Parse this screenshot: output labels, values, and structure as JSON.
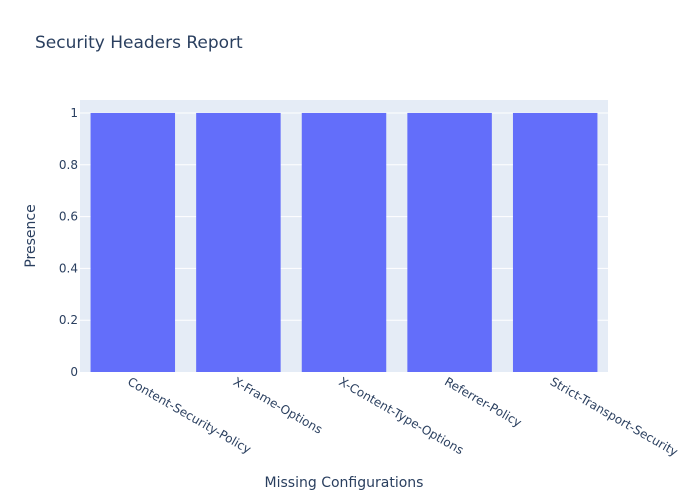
{
  "chart_data": {
    "type": "bar",
    "title": "Security Headers Report",
    "xlabel": "Missing Configurations",
    "ylabel": "Presence",
    "categories": [
      "Content-Security-Policy",
      "X-Frame-Options",
      "X-Content-Type-Options",
      "Referrer-Policy",
      "Strict-Transport-Security"
    ],
    "values": [
      1,
      1,
      1,
      1,
      1
    ],
    "ylim": [
      0,
      1.05
    ],
    "yticks": [
      0,
      0.2,
      0.4,
      0.6,
      0.8,
      1
    ],
    "ytick_labels": [
      "0",
      "0.2",
      "0.4",
      "0.6",
      "0.8",
      "1"
    ],
    "grid": true,
    "bar_color": "#636efa",
    "plot_bg": "#e5ecf6"
  }
}
